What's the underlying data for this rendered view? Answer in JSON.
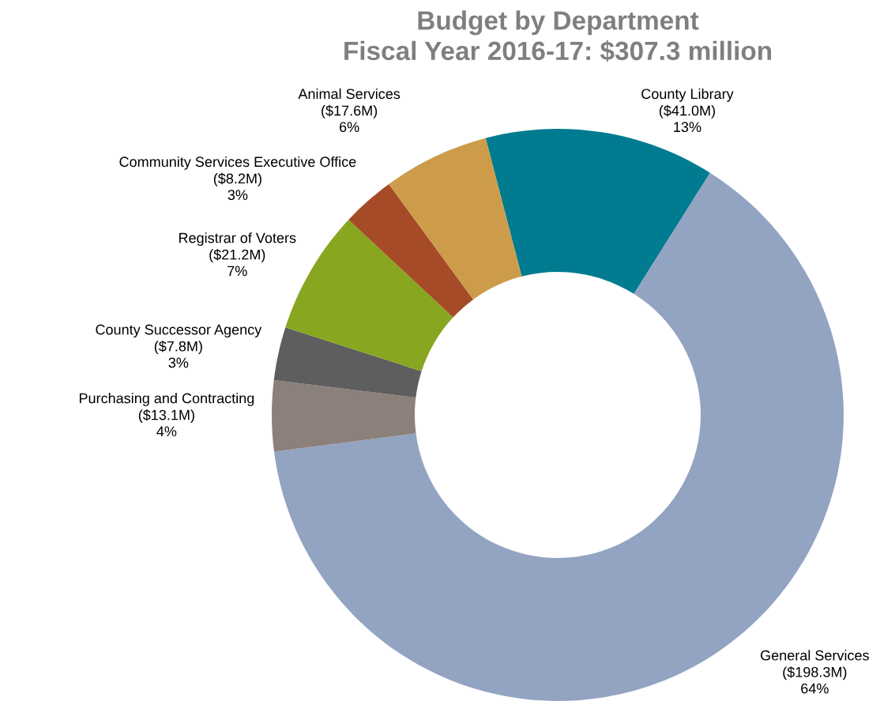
{
  "chart_data": {
    "type": "donut",
    "title": "Budget by Department\nFiscal Year 2016-17: $307.3 million",
    "categories": [
      "County Library",
      "General Services",
      "Purchasing and Contracting",
      "County Successor Agency",
      "Registrar of Voters",
      "Community Services Executive Office",
      "Animal Services"
    ],
    "values": [
      13,
      64,
      4,
      3,
      7,
      3,
      6
    ],
    "value_labels": [
      "($41.0M)\n13%",
      "($198.3M)\n64%",
      "($13.1M)\n4%",
      "($7.8M)\n3%",
      "($21.2M)\n7%",
      "($8.2M)\n3%",
      "($17.6M)\n6%"
    ],
    "colors": [
      "#007b8f",
      "#93a3c2",
      "#8b807a",
      "#5e5e5e",
      "#88a620",
      "#a64b28",
      "#cc9c4a"
    ],
    "legend": false
  }
}
